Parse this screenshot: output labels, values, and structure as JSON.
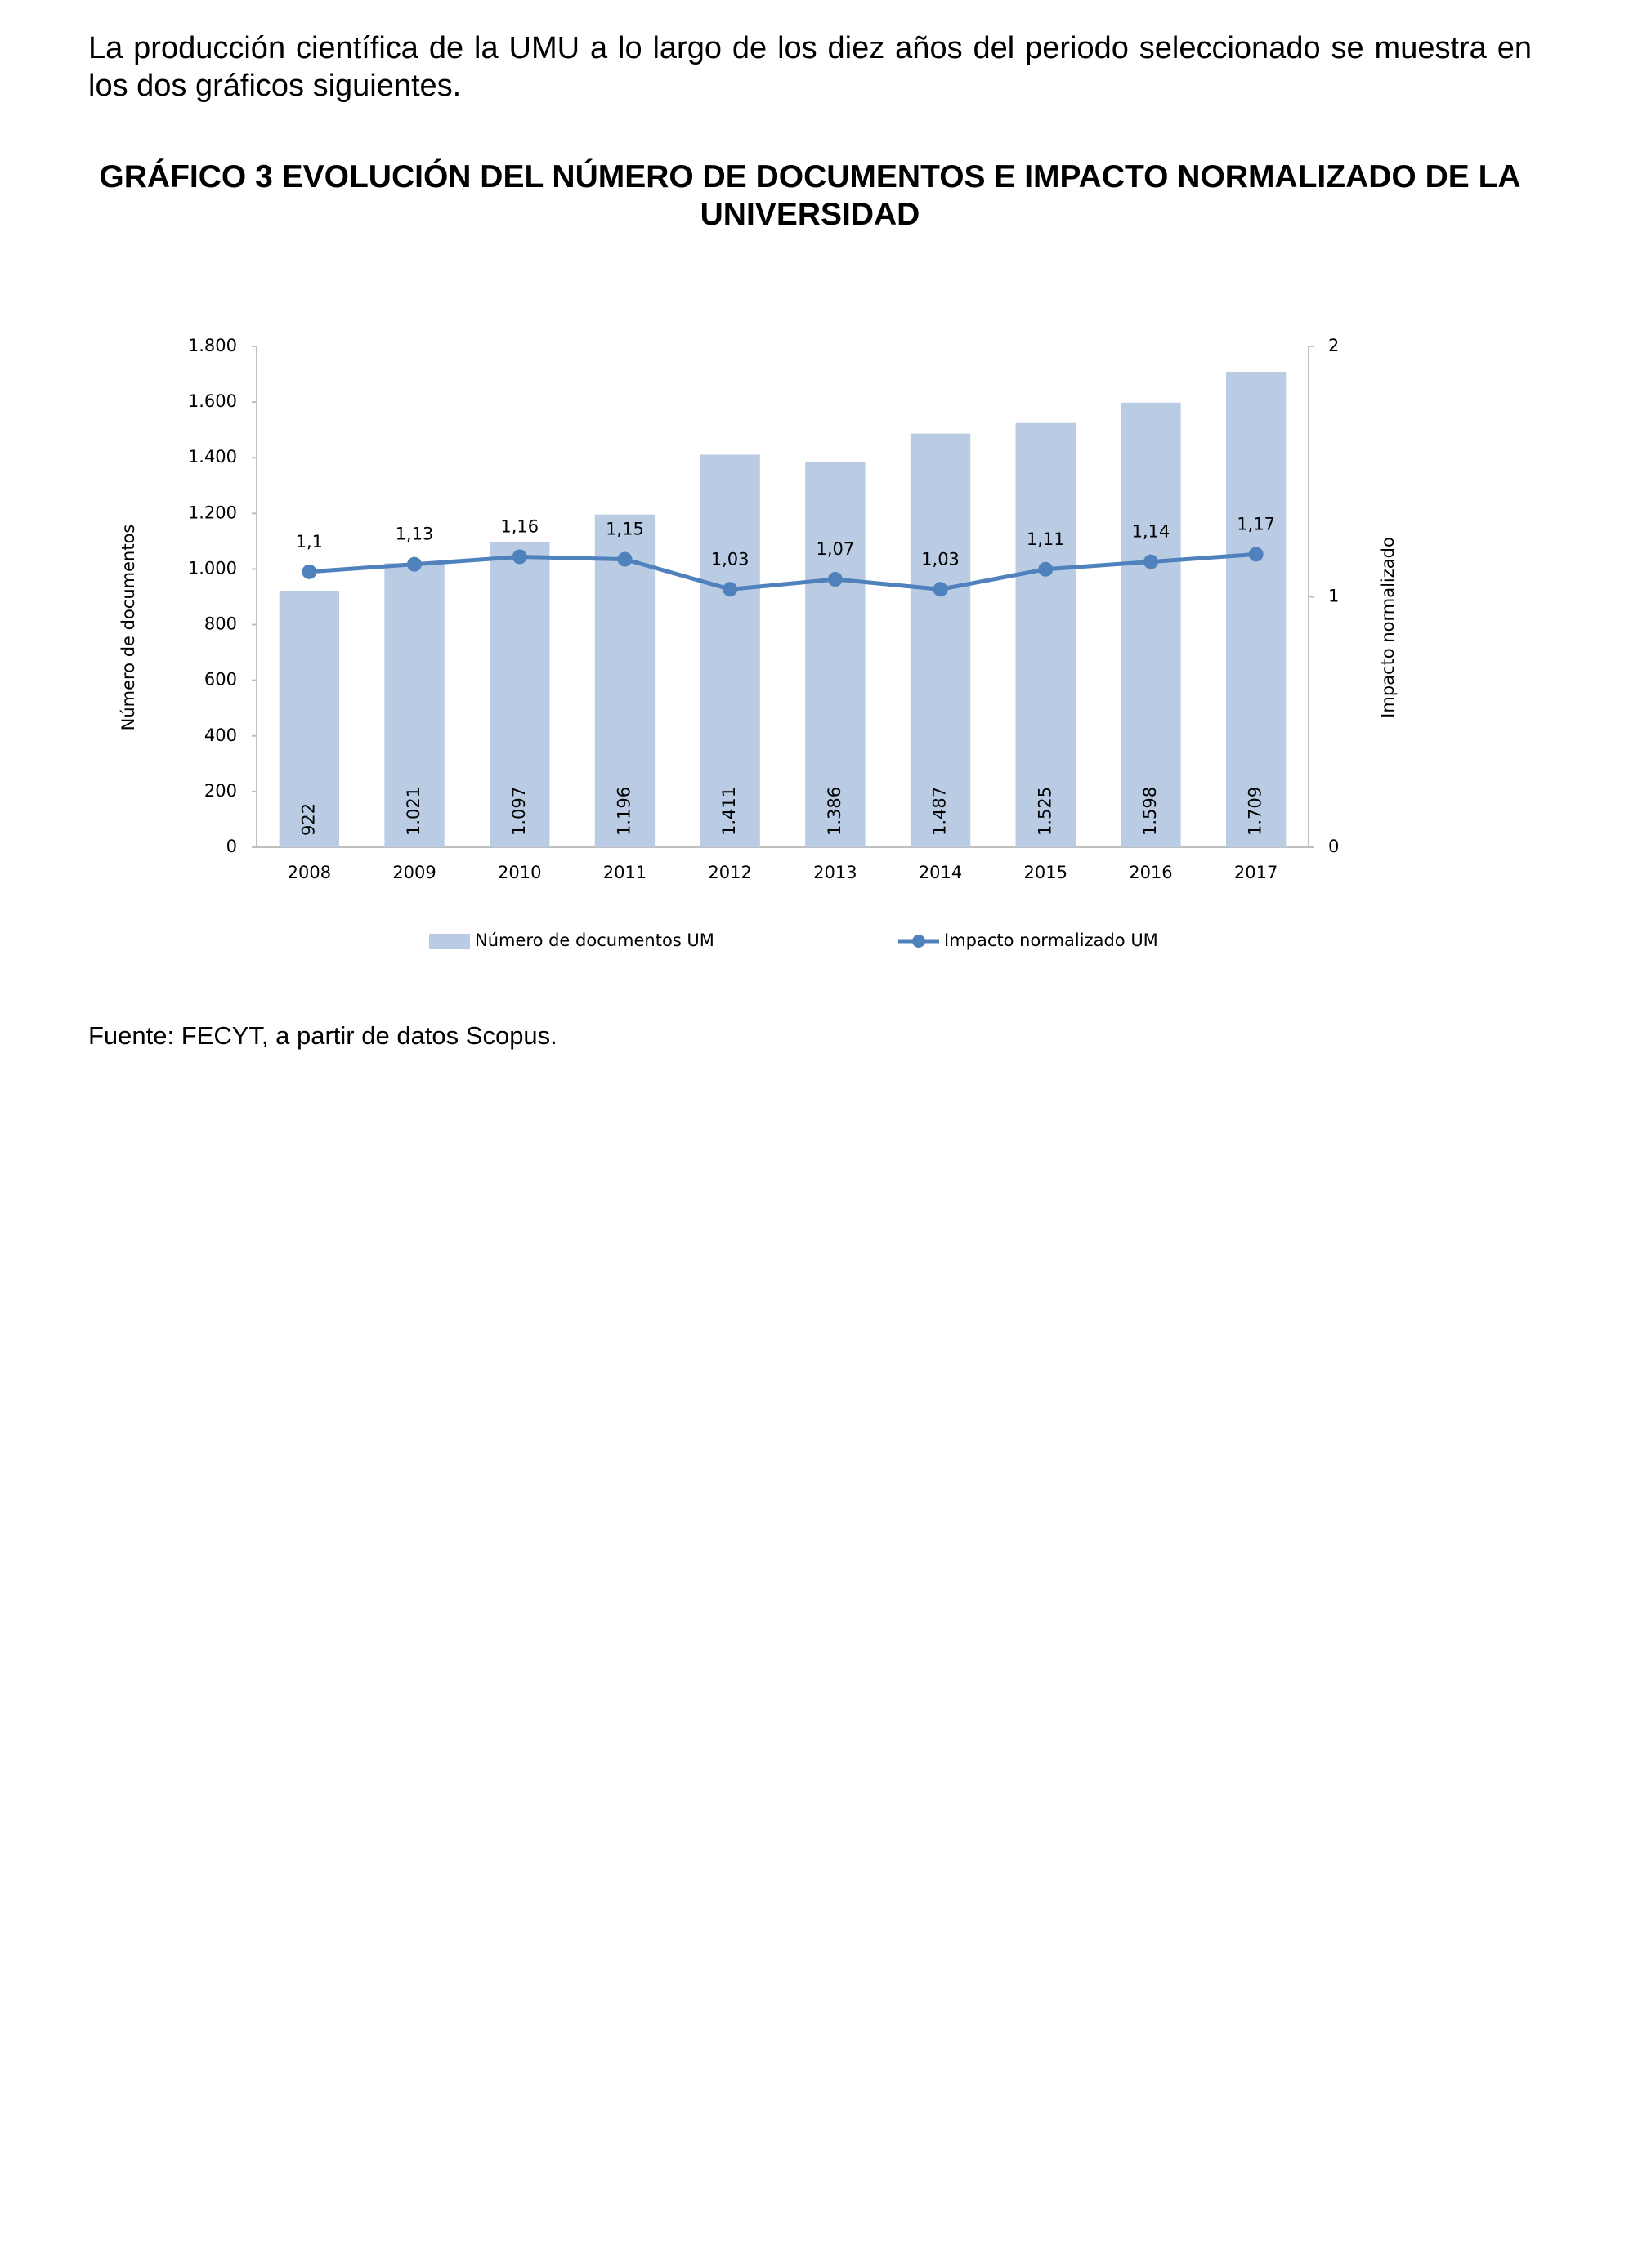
{
  "paragraph": "La producción científica de la UMU a lo largo de los diez años del periodo seleccionado se muestra en los dos gráficos siguientes.",
  "chart_data": {
    "type": "bar",
    "title": "GRÁFICO 3 EVOLUCIÓN DEL NÚMERO DE DOCUMENTOS E IMPACTO NORMALIZADO DE LA UNIVERSIDAD",
    "y_label": "Número de documentos",
    "y2_label": "Impacto normalizado",
    "categories": [
      "2008",
      "2009",
      "2010",
      "2011",
      "2012",
      "2013",
      "2014",
      "2015",
      "2016",
      "2017"
    ],
    "series": [
      {
        "name": "Número de documentos UM",
        "type": "bar",
        "color": "#b9cce4",
        "values": [
          922,
          1021,
          1097,
          1196,
          1411,
          1386,
          1487,
          1525,
          1598,
          1709
        ],
        "value_labels": [
          "922",
          "1.021",
          "1.097",
          "1.196",
          "1.411",
          "1.386",
          "1.487",
          "1.525",
          "1.598",
          "1.709"
        ]
      },
      {
        "name": "Impacto normalizado UM",
        "type": "line",
        "axis": "y2",
        "color": "#4f81bd",
        "values": [
          1.1,
          1.13,
          1.16,
          1.15,
          1.03,
          1.07,
          1.03,
          1.11,
          1.14,
          1.17
        ],
        "value_labels": [
          "1,1",
          "1,13",
          "1,16",
          "1,15",
          "1,03",
          "1,07",
          "1,03",
          "1,11",
          "1,14",
          "1,17"
        ]
      }
    ],
    "ylim": [
      0,
      1800
    ],
    "yticks": [
      0,
      200,
      400,
      600,
      800,
      {
        "value": 1000,
        "label": "1.000"
      },
      {
        "value": 1200,
        "label": "1.200"
      },
      {
        "value": 1400,
        "label": "1.400"
      },
      {
        "value": 1600,
        "label": "1.600"
      },
      {
        "value": 1800,
        "label": "1.800"
      }
    ],
    "y2lim": [
      0,
      2
    ],
    "y2ticks": [
      0,
      1,
      2
    ],
    "grid": false,
    "legend": "bottom"
  },
  "source": "Fuente: FECYT, a partir de datos Scopus."
}
